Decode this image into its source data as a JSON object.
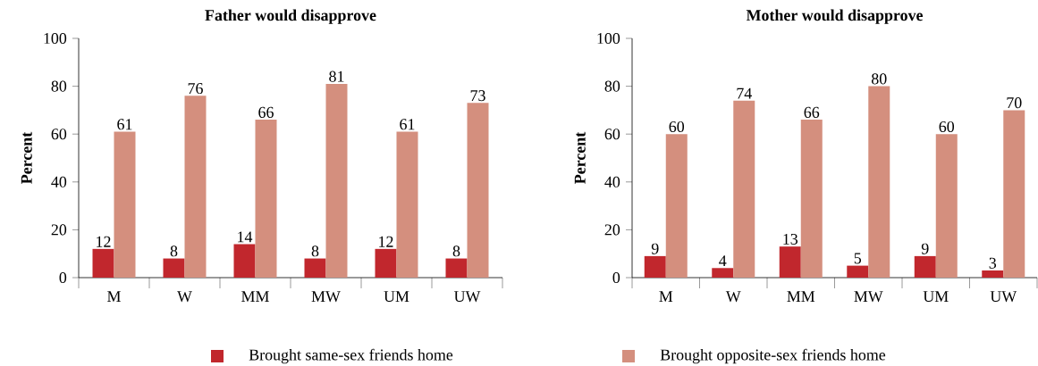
{
  "chart_data": [
    {
      "type": "bar",
      "title": "Father would disapprove",
      "ylabel": "Percent",
      "categories": [
        "M",
        "W",
        "MM",
        "MW",
        "UM",
        "UW"
      ],
      "series": [
        {
          "name": "Brought same-sex friends home",
          "color": "#c1272d",
          "values": [
            12,
            8,
            14,
            8,
            12,
            8
          ]
        },
        {
          "name": "Brought opposite-sex friends home",
          "color": "#d48f7e",
          "values": [
            61,
            76,
            66,
            81,
            61,
            73
          ]
        }
      ],
      "ylim": [
        0,
        100
      ],
      "yticks": [
        0,
        20,
        40,
        60,
        80,
        100
      ],
      "data_labels": true,
      "legend": "bottom"
    },
    {
      "type": "bar",
      "title": "Mother would disapprove",
      "ylabel": "Percent",
      "categories": [
        "M",
        "W",
        "MM",
        "MW",
        "UM",
        "UW"
      ],
      "series": [
        {
          "color": "#c1272d",
          "values": [
            9,
            4,
            13,
            5,
            9,
            3
          ]
        },
        {
          "color": "#d48f7e",
          "values": [
            60,
            74,
            66,
            80,
            60,
            70
          ]
        }
      ],
      "ylim": [
        0,
        100
      ],
      "yticks": [
        0,
        20,
        40,
        60,
        80,
        100
      ],
      "data_labels": true
    }
  ]
}
